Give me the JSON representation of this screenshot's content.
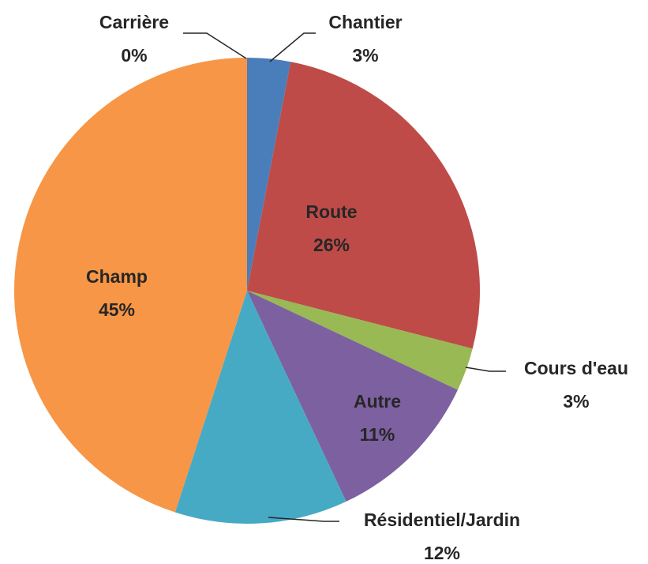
{
  "chart_data": {
    "type": "pie",
    "categories": [
      "Chantier",
      "Route",
      "Cours d'eau",
      "Autre",
      "Résidentiel/Jardin",
      "Champ",
      "Carrière"
    ],
    "values": [
      3,
      26,
      3,
      11,
      12,
      45,
      0
    ],
    "value_labels": [
      "3%",
      "26%",
      "3%",
      "11%",
      "12%",
      "45%",
      "0%"
    ],
    "colors": [
      "#4a7ebb",
      "#be4b48",
      "#98b954",
      "#7d60a0",
      "#46aac5",
      "#f79646",
      "#a6b9d9"
    ]
  }
}
